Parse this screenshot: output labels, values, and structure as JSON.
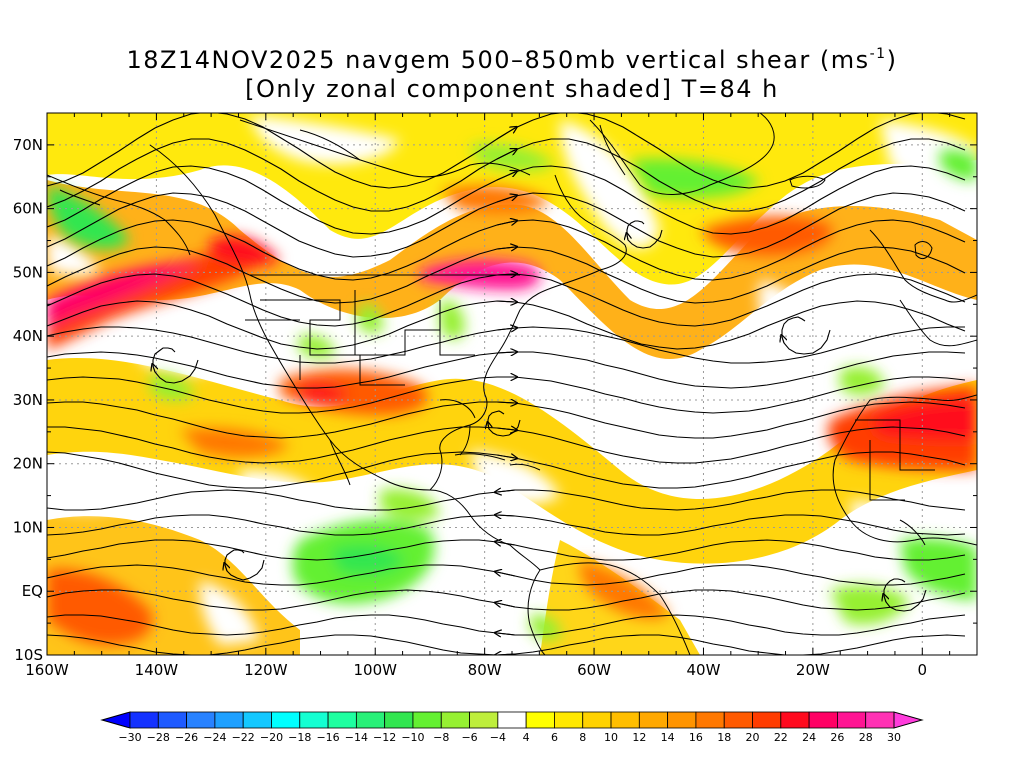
{
  "title": {
    "line1_prefix": "18Z14NOV2025 navgem 500–850mb vertical shear (ms",
    "line1_sup": "-1",
    "line1_suffix": ")",
    "line2": "[Only zonal component shaded] T=84 h"
  },
  "lat_labels": [
    "70N",
    "60N",
    "50N",
    "40N",
    "30N",
    "20N",
    "10N",
    "EQ",
    "10S"
  ],
  "lat_values": [
    70,
    60,
    50,
    40,
    30,
    20,
    10,
    0,
    -10
  ],
  "lon_labels": [
    "160W",
    "140W",
    "120W",
    "100W",
    "80W",
    "60W",
    "40W",
    "20W",
    "0"
  ],
  "lon_values": [
    -160,
    -140,
    -120,
    -100,
    -80,
    -60,
    -40,
    -20,
    0
  ],
  "map_extent": {
    "lon_min": -160,
    "lon_max": 10,
    "lat_min": -10,
    "lat_max": 75
  },
  "colorbar": {
    "labels": [
      "-30",
      "-28",
      "-26",
      "-24",
      "-22",
      "-20",
      "-18",
      "-16",
      "-14",
      "-12",
      "-10",
      "-8",
      "-6",
      "-4",
      "4",
      "6",
      "8",
      "10",
      "12",
      "14",
      "16",
      "18",
      "20",
      "22",
      "24",
      "26",
      "28",
      "30"
    ],
    "colors": [
      "#1432ff",
      "#1e5aff",
      "#2882ff",
      "#1ea0ff",
      "#14c8ff",
      "#00ffff",
      "#14ffd2",
      "#1effa0",
      "#28f078",
      "#32e650",
      "#64f032",
      "#96f032",
      "#beee3c",
      "#ffffff",
      "#ffff00",
      "#ffe800",
      "#ffd200",
      "#ffbe00",
      "#ffa800",
      "#ff9400",
      "#ff7800",
      "#ff5a00",
      "#ff3c00",
      "#ff0a1e",
      "#ff0064",
      "#ff1493",
      "#ff32b4"
    ],
    "under_color": "#0000ff",
    "over_color": "#ff3cdc"
  },
  "colors": {
    "land_outline": "#000000",
    "grid": "#9a9a9a",
    "streamline": "#000000"
  }
}
